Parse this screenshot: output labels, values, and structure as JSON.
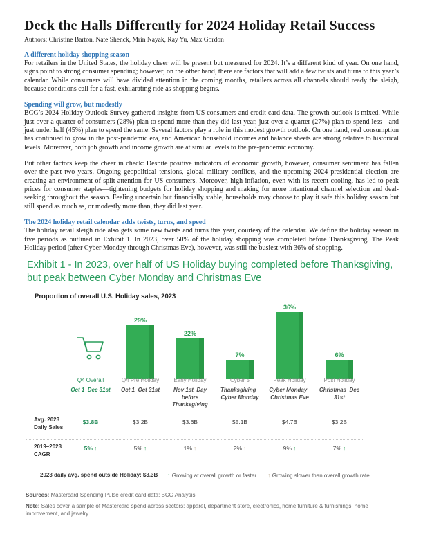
{
  "colors": {
    "blue": "#2e74b5",
    "green-title": "#2a9d5f",
    "green-label": "#2a9d52",
    "green-dark": "#1f8a55",
    "bar-green": "#33ad55",
    "bar-edge": "#289946",
    "tan": "#c7b9a2"
  },
  "page": {
    "title": "Deck the Halls Differently for 2024 Holiday Retail Success",
    "authors": "Authors: Christine Barton, Nate Shenck, Mrin Nayak, Ray Yu, Max Gordon"
  },
  "sections": [
    {
      "heading": "A different holiday shopping season",
      "paragraphs": [
        "For retailers in the United States, the holiday cheer will be present but measured for 2024. It’s a different kind of year. On one hand, signs point to strong consumer spending; however, on the other hand, there are factors that will add a few twists and turns to this year’s calendar. While consumers will have divided attention in the coming months, retailers across all channels should ready the sleigh, because conditions call for a fast, exhilarating ride as shopping begins."
      ]
    },
    {
      "heading": "Spending will grow, but modestly",
      "paragraphs": [
        "BCG’s 2024 Holiday Outlook Survey gathered insights from US consumers and credit card data. The growth outlook is mixed. While just over a quarter of consumers (28%) plan to spend more than they did last year, just over a quarter (27%) plan to spend less—and just under half (45%) plan to spend the same. Several factors play a role in this modest growth outlook. On one hand, real consumption has continued to grow in the post-pandemic era, and American household incomes and balance sheets are strong relative to historical levels. Moreover, both job growth and income growth are at similar levels to the pre-pandemic economy.",
        "But other factors keep the cheer in check: Despite positive indicators of economic growth, however, consumer sentiment has fallen over the past two years. Ongoing geopolitical tensions, global military conflicts, and the upcoming 2024 presidential election are creating an environment of split attention for US consumers. Moreover, high inflation, even with its recent cooling, has led to peak prices for consumer staples—tightening budgets for holiday shopping and making for more intentional channel selection and deal-seeking throughout the season. Feeling uncertain but financially stable, households may choose to play it safe this holiday season but still spend as much as, or modestly more than, they did last year."
      ]
    },
    {
      "heading": "The 2024 holiday retail calendar adds twists, turns, and speed",
      "paragraphs": [
        "The holiday retail sleigh ride also gets some new twists and turns this year, courtesy of the calendar. We define the holiday season in five periods as outlined in Exhibit 1. In 2023, over 50% of the holiday shopping was completed before Thanksgiving. The Peak Holiday period (after Cyber Monday through Christmas Eve), however, was still the busiest with 36% of shopping."
      ]
    }
  ],
  "exhibit": {
    "title": "Exhibit 1 - In 2023, over half of US Holiday buying completed before Thanksgiving, but peak between Cyber Monday and Christmas Eve",
    "chart_data": {
      "type": "bar",
      "title": "Proportion of overall U.S. Holiday sales, 2023",
      "ylim": [
        0,
        40
      ],
      "grid": false,
      "row_labels": {
        "avg_sales": "Avg. 2023\nDaily Sales",
        "cagr": "2019–2023\nCAGR"
      },
      "columns": [
        {
          "name": "Q4 Overall",
          "dates": "Oct 1–Dec 31st",
          "value_pct": null,
          "pct_label": "",
          "icon": "shopping-cart-icon",
          "avg_daily_sales": "$3.8B",
          "cagr": "5%",
          "cagr_trend": "at-or-above-overall"
        },
        {
          "name": "Q4 Pre Holiday",
          "dates": "Oct 1–Oct 31st",
          "value_pct": 29,
          "pct_label": "29%",
          "avg_daily_sales": "$3.2B",
          "cagr": "5%",
          "cagr_trend": "at-or-above-overall"
        },
        {
          "name": "Early Holiday",
          "dates": "Nov 1st–Day before Thanksgiving",
          "value_pct": 22,
          "pct_label": "22%",
          "avg_daily_sales": "$3.6B",
          "cagr": "1%",
          "cagr_trend": "below-overall"
        },
        {
          "name": "Cyber 5",
          "dates": "Thanksgiving–Cyber Monday",
          "value_pct": 7,
          "pct_label": "7%",
          "avg_daily_sales": "$5.1B",
          "cagr": "2%",
          "cagr_trend": "below-overall"
        },
        {
          "name": "Peak Holiday",
          "dates": "Cyber Monday–Christmas Eve",
          "value_pct": 36,
          "pct_label": "36%",
          "avg_daily_sales": "$4.7B",
          "cagr": "9%",
          "cagr_trend": "at-or-above-overall"
        },
        {
          "name": "Post Holiday",
          "dates": "Christmas–Dec 31st",
          "value_pct": 6,
          "pct_label": "6%",
          "avg_daily_sales": "$3.2B",
          "cagr": "7%",
          "cagr_trend": "at-or-above-overall"
        }
      ]
    },
    "legend": {
      "outside": "2023 daily avg. spend outside Holiday: $3.3B",
      "fast": "Growing at overall growth or faster",
      "slow": "Growing slower than overall growth rate"
    },
    "footnotes": {
      "sources_label": "Sources:",
      "sources": " Mastercard Spending Pulse credit card data; BCG Analysis.",
      "note_label": "Note:",
      "note": " Sales cover a sample of Mastercard spend across sectors: apparel, department store, electronics, home furniture & furnishings, home improvement, and jewelry."
    }
  }
}
